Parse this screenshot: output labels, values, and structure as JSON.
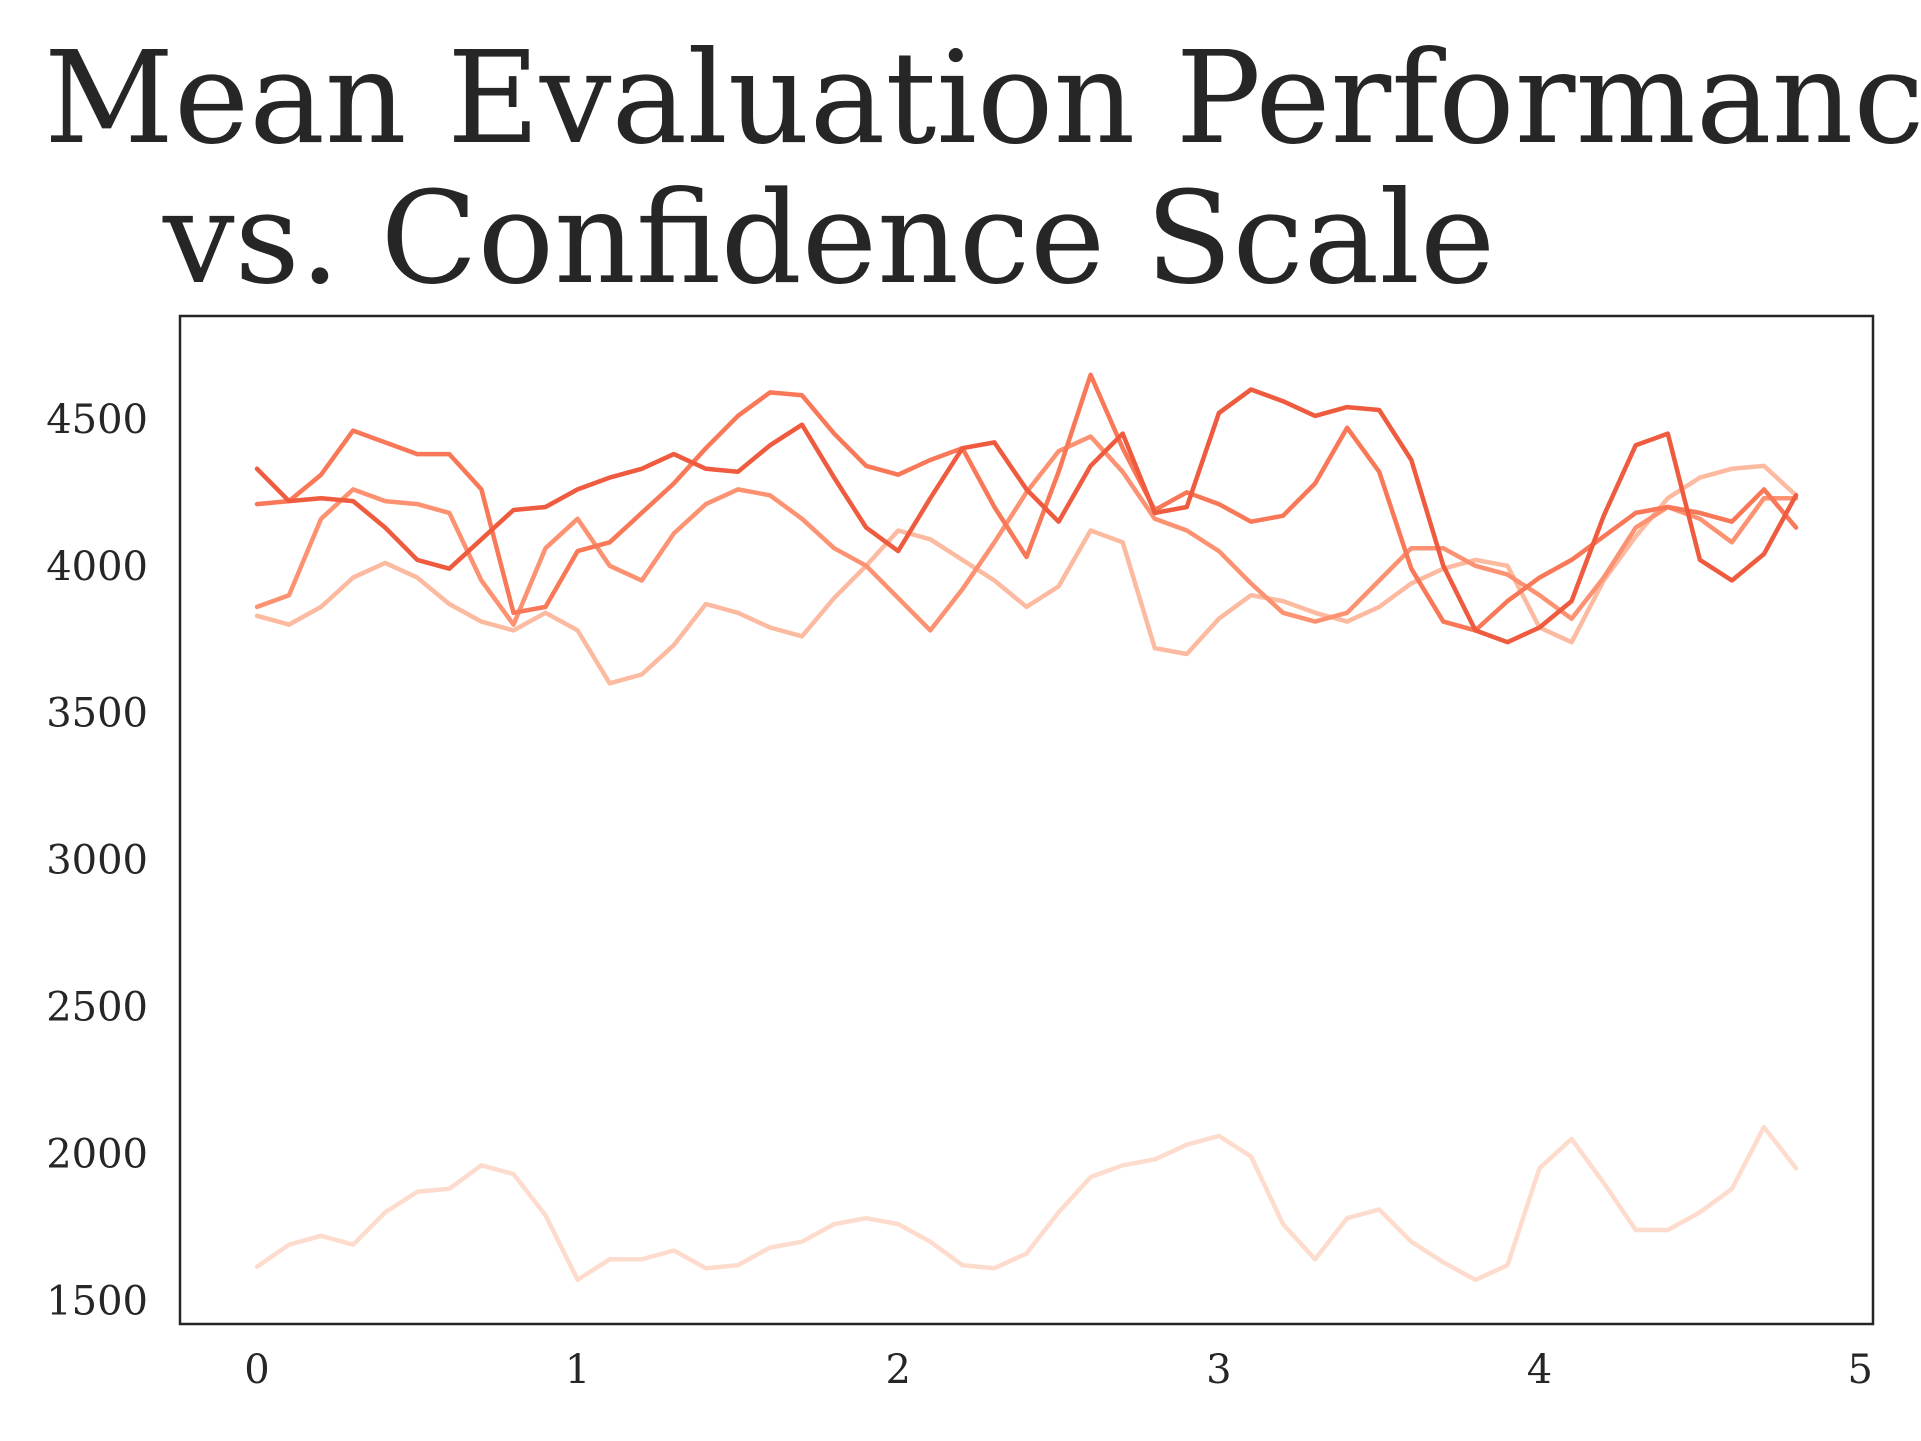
{
  "chart_data": {
    "type": "line",
    "title_lines": [
      "Mean Evaluation Performance",
      "vs. Confidence Scale"
    ],
    "xlabel": "",
    "ylabel": "",
    "xlim": [
      -0.24,
      5.04
    ],
    "ylim": [
      1420,
      4850
    ],
    "xticks": [
      0,
      1,
      2,
      3,
      4,
      5
    ],
    "yticks": [
      1500,
      2000,
      2500,
      3000,
      3500,
      4000,
      4500
    ],
    "grid": false,
    "legend": "none",
    "series": [
      {
        "color": "#fedccd",
        "x": [
          0,
          0.1,
          0.2,
          0.3,
          0.4,
          0.5,
          0.6,
          0.7,
          0.8,
          0.9,
          1,
          1.1,
          1.2,
          1.3,
          1.4,
          1.5,
          1.6,
          1.7,
          1.8,
          1.9,
          2,
          2.1,
          2.2,
          2.3,
          2.4,
          2.5,
          2.6,
          2.7,
          2.8,
          2.9,
          3,
          3.1,
          3.2,
          3.3,
          3.4,
          3.5,
          3.6,
          3.7,
          3.8,
          3.9,
          4,
          4.1,
          4.2,
          4.3,
          4.4,
          4.5,
          4.6,
          4.7,
          4.8
        ],
        "y": [
          1615,
          1690,
          1720,
          1690,
          1800,
          1870,
          1880,
          1960,
          1930,
          1790,
          1570,
          1640,
          1640,
          1670,
          1610,
          1620,
          1680,
          1700,
          1760,
          1780,
          1760,
          1700,
          1620,
          1610,
          1660,
          1800,
          1920,
          1960,
          1980,
          2030,
          2060,
          1990,
          1760,
          1640,
          1780,
          1810,
          1700,
          1630,
          1570,
          1620,
          1950,
          2050,
          1900,
          1740,
          1740,
          1800,
          1880,
          2090,
          1950
        ]
      },
      {
        "color": "#fcbba1",
        "x": [
          0,
          0.1,
          0.2,
          0.3,
          0.4,
          0.5,
          0.6,
          0.7,
          0.8,
          0.9,
          1,
          1.1,
          1.2,
          1.3,
          1.4,
          1.5,
          1.6,
          1.7,
          1.8,
          1.9,
          2,
          2.1,
          2.2,
          2.3,
          2.4,
          2.5,
          2.6,
          2.7,
          2.8,
          2.9,
          3,
          3.1,
          3.2,
          3.3,
          3.4,
          3.5,
          3.6,
          3.7,
          3.8,
          3.9,
          4,
          4.1,
          4.2,
          4.3,
          4.4,
          4.5,
          4.6,
          4.7,
          4.8
        ],
        "y": [
          3830,
          3800,
          3860,
          3960,
          4010,
          3960,
          3870,
          3810,
          3780,
          3840,
          3780,
          3600,
          3630,
          3730,
          3870,
          3840,
          3790,
          3760,
          3890,
          4000,
          4120,
          4090,
          4020,
          3950,
          3860,
          3930,
          4120,
          4080,
          3720,
          3700,
          3820,
          3900,
          3880,
          3840,
          3810,
          3860,
          3940,
          3990,
          4020,
          4000,
          3790,
          3740,
          3950,
          4100,
          4230,
          4300,
          4330,
          4340,
          4240
        ]
      },
      {
        "color": "#fc9272",
        "x": [
          0,
          0.1,
          0.2,
          0.3,
          0.4,
          0.5,
          0.6,
          0.7,
          0.8,
          0.9,
          1,
          1.1,
          1.2,
          1.3,
          1.4,
          1.5,
          1.6,
          1.7,
          1.8,
          1.9,
          2,
          2.1,
          2.2,
          2.3,
          2.4,
          2.5,
          2.6,
          2.7,
          2.8,
          2.9,
          3,
          3.1,
          3.2,
          3.3,
          3.4,
          3.5,
          3.6,
          3.7,
          3.8,
          3.9,
          4,
          4.1,
          4.2,
          4.3,
          4.4,
          4.5,
          4.6,
          4.7,
          4.8
        ],
        "y": [
          3860,
          3900,
          4160,
          4260,
          4220,
          4210,
          4180,
          3950,
          3800,
          4060,
          4160,
          4000,
          3950,
          4110,
          4210,
          4260,
          4240,
          4160,
          4060,
          4000,
          3890,
          3780,
          3920,
          4080,
          4250,
          4390,
          4440,
          4320,
          4160,
          4120,
          4050,
          3940,
          3840,
          3810,
          3840,
          3950,
          4060,
          4060,
          4000,
          3970,
          3900,
          3820,
          3960,
          4130,
          4200,
          4160,
          4080,
          4230,
          4230
        ]
      },
      {
        "color": "#f87858",
        "x": [
          0,
          0.1,
          0.2,
          0.3,
          0.4,
          0.5,
          0.6,
          0.7,
          0.8,
          0.9,
          1,
          1.1,
          1.2,
          1.3,
          1.4,
          1.5,
          1.6,
          1.7,
          1.8,
          1.9,
          2,
          2.1,
          2.2,
          2.3,
          2.4,
          2.5,
          2.6,
          2.7,
          2.8,
          2.9,
          3,
          3.1,
          3.2,
          3.3,
          3.4,
          3.5,
          3.6,
          3.7,
          3.8,
          3.9,
          4,
          4.1,
          4.2,
          4.3,
          4.4,
          4.5,
          4.6,
          4.7,
          4.8
        ],
        "y": [
          4210,
          4220,
          4310,
          4460,
          4420,
          4380,
          4380,
          4260,
          3840,
          3860,
          4050,
          4080,
          4180,
          4280,
          4400,
          4510,
          4590,
          4580,
          4450,
          4340,
          4310,
          4360,
          4400,
          4200,
          4030,
          4320,
          4650,
          4400,
          4190,
          4250,
          4210,
          4150,
          4170,
          4280,
          4470,
          4320,
          3990,
          3810,
          3780,
          3880,
          3960,
          4020,
          4100,
          4180,
          4200,
          4180,
          4150,
          4260,
          4130
        ]
      },
      {
        "color": "#ef5b3f",
        "x": [
          0,
          0.1,
          0.2,
          0.3,
          0.4,
          0.5,
          0.6,
          0.7,
          0.8,
          0.9,
          1,
          1.1,
          1.2,
          1.3,
          1.4,
          1.5,
          1.6,
          1.7,
          1.8,
          1.9,
          2,
          2.1,
          2.2,
          2.3,
          2.4,
          2.5,
          2.6,
          2.7,
          2.8,
          2.9,
          3,
          3.1,
          3.2,
          3.3,
          3.4,
          3.5,
          3.6,
          3.7,
          3.8,
          3.9,
          4,
          4.1,
          4.2,
          4.3,
          4.4,
          4.5,
          4.6,
          4.7,
          4.8
        ],
        "y": [
          4330,
          4220,
          4230,
          4220,
          4130,
          4020,
          3990,
          4090,
          4190,
          4200,
          4260,
          4300,
          4330,
          4380,
          4330,
          4320,
          4410,
          4480,
          4300,
          4130,
          4050,
          4230,
          4400,
          4420,
          4260,
          4150,
          4340,
          4450,
          4180,
          4200,
          4520,
          4600,
          4560,
          4510,
          4540,
          4530,
          4360,
          4000,
          3780,
          3740,
          3790,
          3880,
          4170,
          4410,
          4450,
          4020,
          3950,
          4040,
          4240
        ]
      }
    ]
  }
}
